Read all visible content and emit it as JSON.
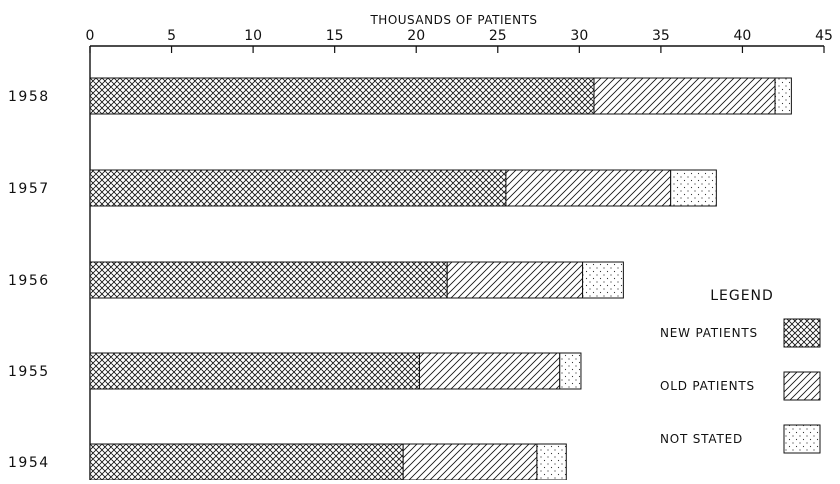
{
  "chart_data": {
    "type": "bar",
    "orientation": "horizontal",
    "stacked": true,
    "xlabel": "THOUSANDS OF PATIENTS",
    "xlim": [
      0,
      45
    ],
    "xticks": [
      0,
      5,
      10,
      15,
      20,
      25,
      30,
      35,
      40,
      45
    ],
    "categories": [
      "1958",
      "1957",
      "1956",
      "1955",
      "1954"
    ],
    "series": [
      {
        "name": "NEW PATIENTS",
        "pattern": "crosshatch",
        "values": [
          30.9,
          25.5,
          21.9,
          20.2,
          19.2
        ]
      },
      {
        "name": "OLD PATIENTS",
        "pattern": "diagonal",
        "values": [
          11.1,
          10.1,
          8.3,
          8.6,
          8.2
        ]
      },
      {
        "name": "NOT STATED",
        "pattern": "dots",
        "values": [
          1.0,
          2.8,
          2.5,
          1.3,
          1.8
        ]
      }
    ],
    "legend_title": "LEGEND",
    "legend_position": "bottom-right",
    "grid": false,
    "colors": {
      "ink": "#111111",
      "background": "#ffffff"
    }
  }
}
